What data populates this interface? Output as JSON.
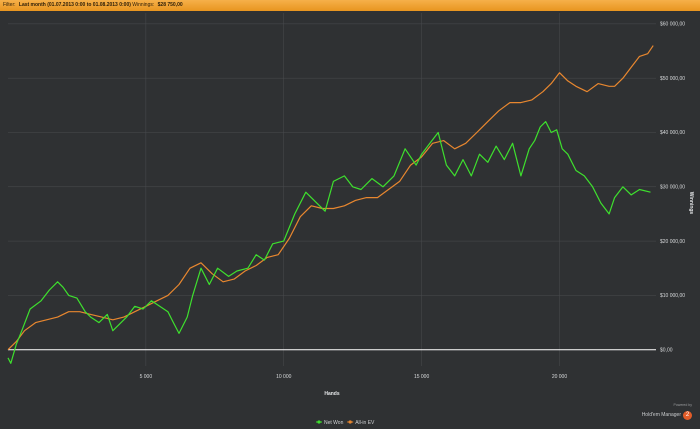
{
  "filter": {
    "label": "Filter:",
    "range": "Last month (01.07.2013 0:00 to 01.08.2013 0:00)",
    "winnings_label": "Winnings:",
    "winnings_value": "$28 750,00"
  },
  "brand": {
    "powered": "Powered by",
    "name": "Hold'em Manager",
    "logo_glyph": "2"
  },
  "colors": {
    "background": "#2f3133",
    "grid": "#4a4c4f",
    "net_won": "#3ee02e",
    "all_in_ev": "#e8872f",
    "zero_line": "#ffffff"
  },
  "chart_data": {
    "type": "line",
    "title": "",
    "xlabel": "Hands",
    "ylabel": "Winnings",
    "xlim": [
      0,
      23500
    ],
    "ylim": [
      -3000,
      62000
    ],
    "x_ticks": [
      5000,
      10000,
      15000,
      20000
    ],
    "x_tick_labels": [
      "5 000",
      "10 000",
      "15 000",
      "20 000"
    ],
    "y_ticks": [
      0,
      10000,
      20000,
      30000,
      40000,
      50000,
      60000
    ],
    "y_tick_labels": [
      "$0,00",
      "$10 000,00",
      "$20 000,00",
      "$30 000,00",
      "$40 000,00",
      "$50 000,00",
      "$60 000,00"
    ],
    "grid": true,
    "legend_position": "bottom-center",
    "series": [
      {
        "name": "Net Won",
        "color": "#3ee02e",
        "x": [
          0,
          100,
          300,
          500,
          800,
          1200,
          1500,
          1800,
          2000,
          2200,
          2500,
          2800,
          3000,
          3300,
          3600,
          3800,
          4000,
          4300,
          4600,
          4900,
          5200,
          5500,
          5800,
          6000,
          6200,
          6500,
          6700,
          7000,
          7300,
          7600,
          8000,
          8300,
          8700,
          9000,
          9300,
          9600,
          10000,
          10400,
          10800,
          11200,
          11500,
          11800,
          12200,
          12500,
          12800,
          13200,
          13600,
          14000,
          14400,
          14800,
          15000,
          15300,
          15600,
          15900,
          16200,
          16500,
          16800,
          17100,
          17400,
          17700,
          18000,
          18300,
          18600,
          18900,
          19100,
          19300,
          19500,
          19700,
          19900,
          20100,
          20300,
          20600,
          20900,
          21200,
          21500,
          21800,
          22000,
          22300,
          22600,
          22900,
          23300
        ],
        "y": [
          -1500,
          -2500,
          1000,
          3500,
          7500,
          9000,
          11000,
          12500,
          11500,
          10000,
          9500,
          7000,
          6000,
          5000,
          6500,
          3500,
          4500,
          6000,
          8000,
          7500,
          9000,
          8000,
          7000,
          5000,
          3000,
          6000,
          10000,
          15000,
          12000,
          15000,
          13500,
          14500,
          15000,
          17500,
          16500,
          19500,
          20000,
          25000,
          29000,
          27000,
          25500,
          31000,
          32000,
          30000,
          29500,
          31500,
          30000,
          32000,
          37000,
          34000,
          36000,
          38000,
          40000,
          34000,
          32000,
          35000,
          32000,
          36000,
          34500,
          37500,
          35000,
          38000,
          32000,
          37000,
          38500,
          41000,
          42000,
          40000,
          40500,
          37000,
          36000,
          33000,
          32000,
          30000,
          27000,
          25000,
          28000,
          30000,
          28500,
          29500,
          29000
        ]
      },
      {
        "name": "All-in EV",
        "color": "#e8872f",
        "x": [
          0,
          300,
          600,
          1000,
          1400,
          1800,
          2200,
          2600,
          3000,
          3400,
          3800,
          4200,
          4600,
          5000,
          5400,
          5800,
          6200,
          6600,
          7000,
          7400,
          7800,
          8200,
          8600,
          9000,
          9400,
          9800,
          10200,
          10600,
          11000,
          11400,
          11800,
          12200,
          12600,
          13000,
          13400,
          13800,
          14200,
          14600,
          15000,
          15400,
          15800,
          16200,
          16600,
          17000,
          17400,
          17800,
          18200,
          18600,
          19000,
          19400,
          19700,
          20000,
          20300,
          20600,
          21000,
          21400,
          21800,
          22000,
          22300,
          22600,
          22900,
          23200,
          23400
        ],
        "y": [
          0,
          1500,
          3500,
          5000,
          5500,
          6000,
          7000,
          7000,
          6500,
          6000,
          5500,
          6000,
          7000,
          8000,
          9000,
          10000,
          12000,
          15000,
          16000,
          14000,
          12500,
          13000,
          14500,
          15500,
          17000,
          17500,
          20500,
          24500,
          26500,
          26000,
          26000,
          26500,
          27500,
          28000,
          28000,
          29500,
          31000,
          34000,
          35500,
          38000,
          38500,
          37000,
          38000,
          40000,
          42000,
          44000,
          45500,
          45500,
          46000,
          47500,
          49000,
          51000,
          49500,
          48500,
          47500,
          49000,
          48500,
          48500,
          50000,
          52000,
          54000,
          54500,
          56000
        ]
      }
    ]
  }
}
